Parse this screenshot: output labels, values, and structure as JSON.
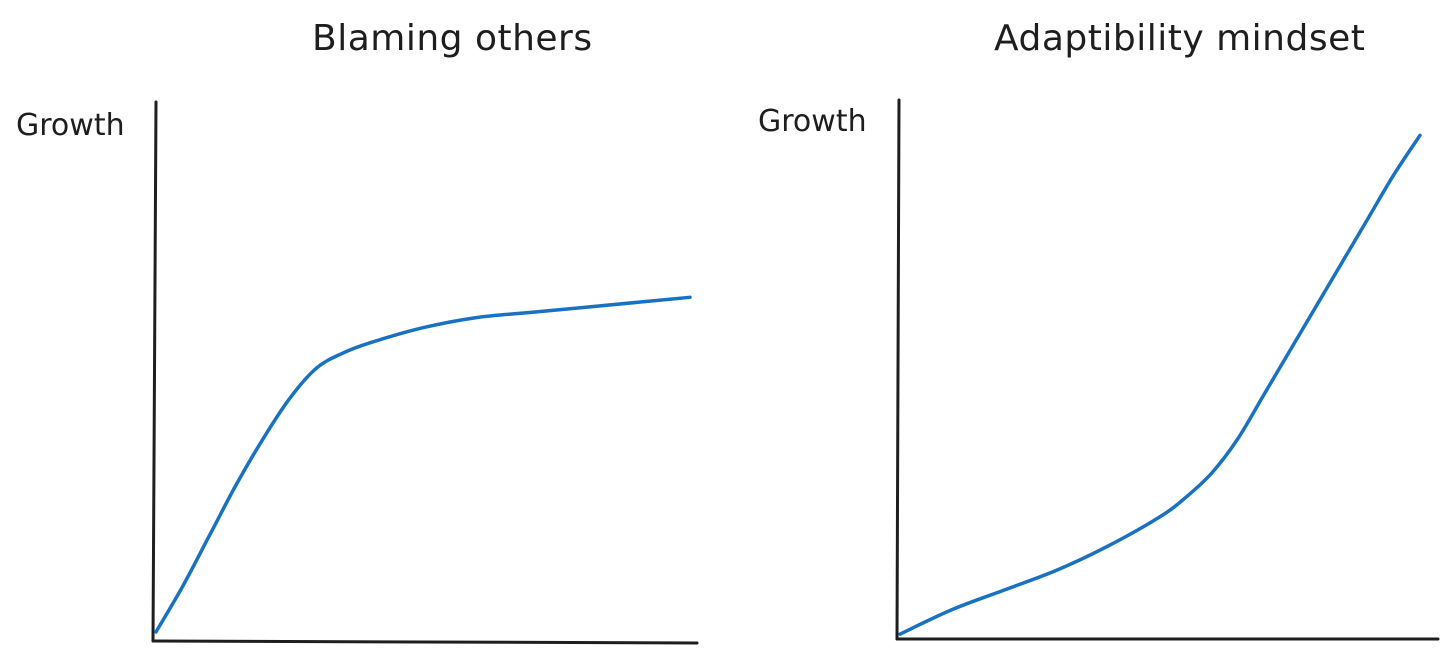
{
  "colors": {
    "axis": "#1e1e1e",
    "line": "#1971c2"
  },
  "chart_data": [
    {
      "type": "line",
      "title": "Blaming others",
      "ylabel": "Growth",
      "xlabel": "",
      "xlim": [
        0,
        10
      ],
      "ylim": [
        0,
        10
      ],
      "grid": false,
      "series": [
        {
          "x": [
            0,
            0.5,
            1,
            1.5,
            2,
            2.5,
            3,
            3.5,
            4,
            5,
            6,
            7,
            8,
            9,
            10
          ],
          "y": [
            0.1,
            1.0,
            2.0,
            3.0,
            3.9,
            4.7,
            5.3,
            5.6,
            5.8,
            6.1,
            6.3,
            6.4,
            6.5,
            6.6,
            6.7
          ]
        }
      ]
    },
    {
      "type": "line",
      "title": "Adaptibility mindset",
      "ylabel": "Growth",
      "xlabel": "",
      "xlim": [
        0,
        10
      ],
      "ylim": [
        0,
        10
      ],
      "grid": false,
      "series": [
        {
          "x": [
            0,
            1,
            2,
            3,
            4,
            5,
            5.5,
            6,
            6.5,
            7,
            7.5,
            8,
            8.5,
            9,
            9.5,
            10
          ],
          "y": [
            0.1,
            0.6,
            1.0,
            1.4,
            1.9,
            2.5,
            2.9,
            3.4,
            4.1,
            5.0,
            5.9,
            6.8,
            7.7,
            8.6,
            9.5,
            10.3
          ]
        }
      ]
    }
  ]
}
